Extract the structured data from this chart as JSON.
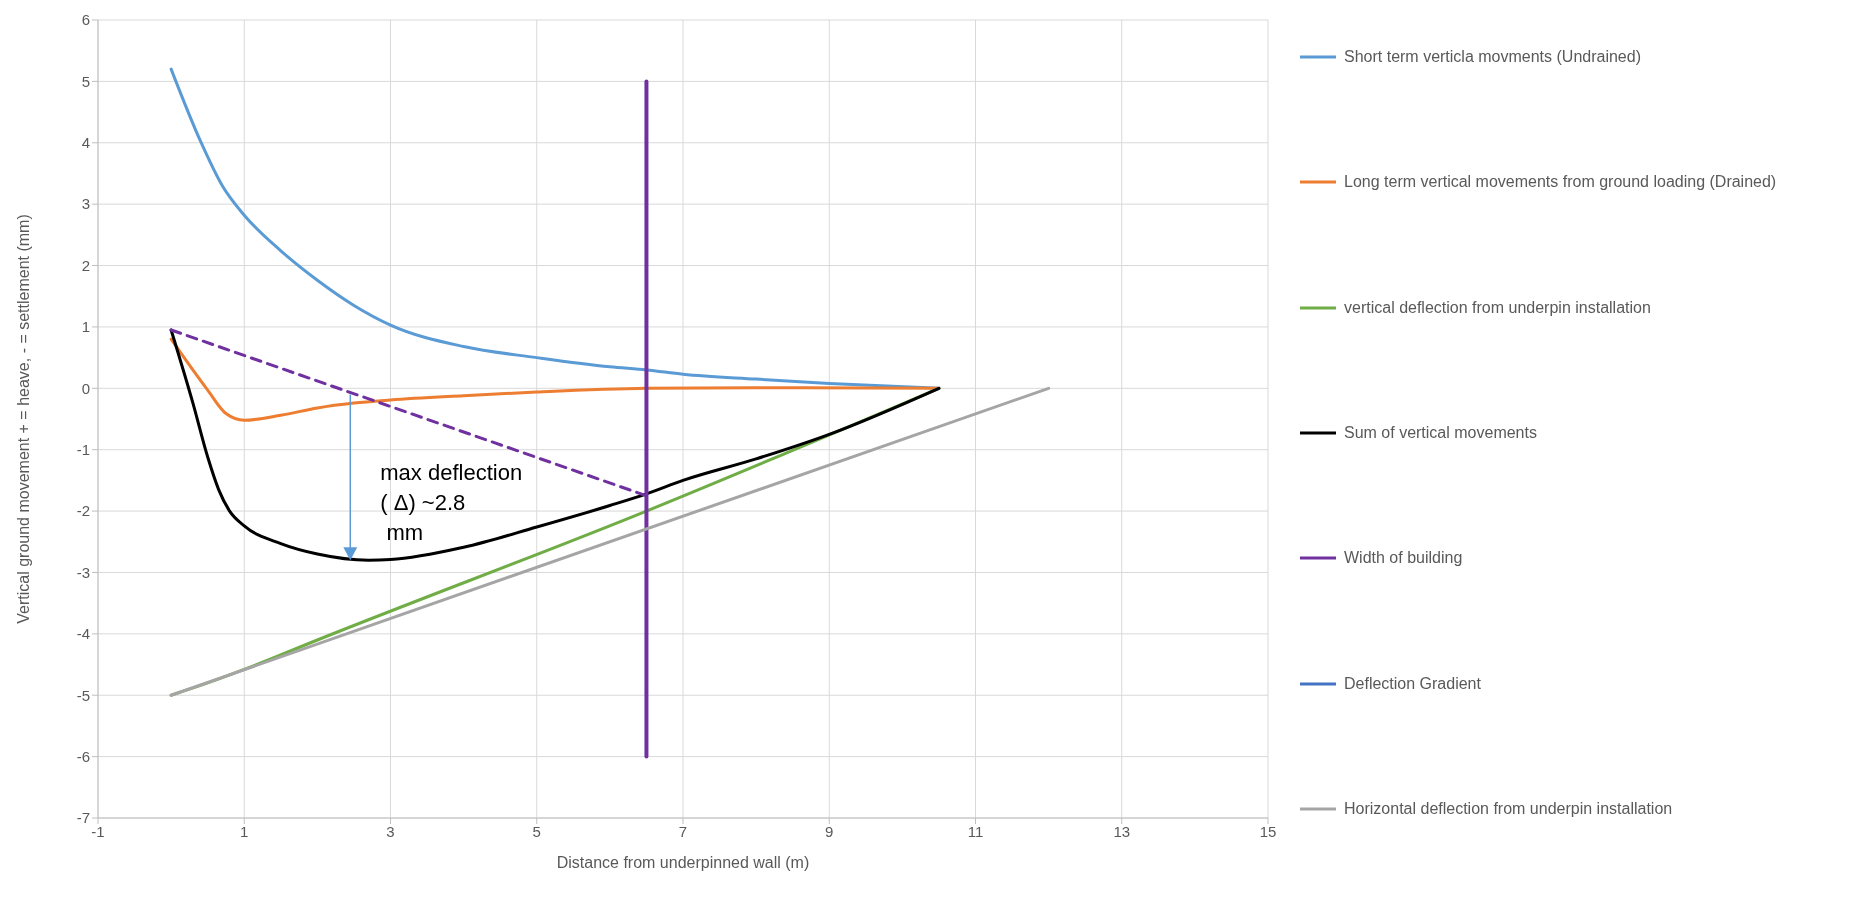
{
  "chart_data": {
    "type": "line",
    "xlabel": "Distance from underpinned wall (m)",
    "ylabel": "Vertical ground movement  + = heave, - = settlement (mm)",
    "xlim": [
      -1,
      15
    ],
    "xticks": [
      -1,
      1,
      3,
      5,
      7,
      9,
      11,
      13,
      15
    ],
    "ylim": [
      -7,
      6
    ],
    "yticks": [
      -7,
      -6,
      -5,
      -4,
      -3,
      -2,
      -1,
      0,
      1,
      2,
      3,
      4,
      5,
      6
    ],
    "grid": true,
    "legend": "right",
    "marker": "none",
    "line_style": "solid",
    "series": [
      {
        "name": "Short term verticla movments (Undrained)",
        "color": "#5b9bd5",
        "x": [
          0,
          0.4,
          0.7,
          1,
          1.5,
          2,
          2.5,
          3,
          4,
          5,
          6,
          6.5,
          7,
          8,
          9,
          10.5
        ],
        "values": [
          5.2,
          4.03,
          3.3,
          2.82,
          2.24,
          1.76,
          1.35,
          1.03,
          0.68,
          0.5,
          0.35,
          0.3,
          0.23,
          0.15,
          0.08,
          0
        ]
      },
      {
        "name": "Long term vertical movements from ground loading (Drained)",
        "color": "#ed7d31",
        "x": [
          0,
          0.5,
          0.75,
          1,
          1.5,
          2,
          2.5,
          3,
          4,
          5,
          6.5,
          8,
          10.5
        ],
        "values": [
          0.8,
          -0.03,
          -0.41,
          -0.52,
          -0.44,
          -0.32,
          -0.24,
          -0.19,
          -0.12,
          -0.06,
          0,
          0.01,
          0
        ]
      },
      {
        "name": "vertical deflection from underpin installation",
        "color": "#70ad47",
        "x": [
          0,
          0.5,
          1,
          2,
          6.5,
          10.5
        ],
        "values": [
          -5,
          -4.8,
          -4.58,
          -4.1,
          -2,
          0
        ]
      },
      {
        "name": "Sum of vertical movements",
        "color": "#000000",
        "x": [
          0,
          0.3,
          0.5,
          0.65,
          0.8,
          1,
          1.5,
          2,
          2.7,
          3,
          4,
          5,
          6,
          6.5,
          7,
          8,
          9,
          10.5
        ],
        "values": [
          0.95,
          -0.25,
          -1.12,
          -1.65,
          -2,
          -2.24,
          -2.53,
          -2.7,
          -2.8,
          -2.79,
          -2.59,
          -2.26,
          -1.91,
          -1.72,
          -1.5,
          -1.15,
          -0.75,
          0
        ]
      },
      {
        "name": "Width of building",
        "color": "#7030a0",
        "x": [
          6.5,
          6.5
        ],
        "values": [
          -6,
          5
        ]
      },
      {
        "name": "Deflection Gradient",
        "color": "#4472c4"
      },
      {
        "name": "Horizontal deflection from underpin installation",
        "color": "#a5a5a5",
        "x": [
          0,
          12
        ],
        "values": [
          -5,
          0
        ]
      },
      {
        "color": "#7030a0",
        "line_style": "dashed",
        "x": [
          0,
          6.5
        ],
        "values": [
          0.95,
          -1.75
        ]
      }
    ],
    "annotations": [
      {
        "text": "max deflection\n( Δ) ~2.8\n mm",
        "x": 2.45,
        "y": -2.8
      }
    ]
  }
}
